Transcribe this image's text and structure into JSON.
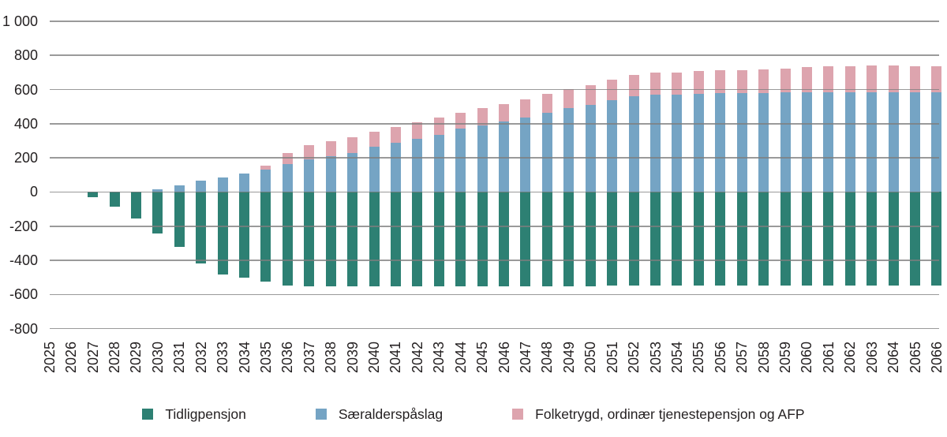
{
  "chart_data": {
    "type": "bar",
    "stacked": true,
    "title": "",
    "xlabel": "",
    "ylabel": "",
    "ylim": [
      -800,
      1000
    ],
    "grid": true,
    "legend_position": "bottom",
    "categories": [
      "2025",
      "2026",
      "2027",
      "2028",
      "2029",
      "2030",
      "2031",
      "2032",
      "2033",
      "2034",
      "2035",
      "2036",
      "2037",
      "2038",
      "2039",
      "2040",
      "2041",
      "2042",
      "2043",
      "2044",
      "2045",
      "2046",
      "2047",
      "2048",
      "2049",
      "2050",
      "2051",
      "2052",
      "2053",
      "2054",
      "2055",
      "2056",
      "2057",
      "2058",
      "2059",
      "2060",
      "2061",
      "2062",
      "2063",
      "2064",
      "2065",
      "2066"
    ],
    "y_ticks": [
      1000,
      800,
      600,
      400,
      200,
      0,
      -200,
      -400,
      -600,
      -800
    ],
    "y_tick_labels": [
      "1 000",
      "800",
      "600",
      "400",
      "200",
      "0",
      "-200",
      "-400",
      "-600",
      "-800"
    ],
    "series": [
      {
        "name": "Tidligpensjon",
        "color": "#2d8073",
        "values": [
          0,
          0,
          -30,
          -85,
          -155,
          -245,
          -320,
          -420,
          -485,
          -500,
          -525,
          -550,
          -555,
          -555,
          -555,
          -555,
          -555,
          -555,
          -555,
          -555,
          -555,
          -555,
          -555,
          -555,
          -555,
          -555,
          -550,
          -550,
          -550,
          -550,
          -550,
          -550,
          -550,
          -550,
          -550,
          -550,
          -550,
          -550,
          -550,
          -550,
          -550,
          -550
        ]
      },
      {
        "name": "Særalderspåslag",
        "color": "#75a4c4",
        "values": [
          0,
          0,
          0,
          0,
          0,
          15,
          40,
          65,
          85,
          110,
          130,
          165,
          190,
          210,
          230,
          265,
          290,
          310,
          335,
          370,
          390,
          415,
          435,
          465,
          490,
          510,
          540,
          560,
          570,
          570,
          575,
          580,
          580,
          580,
          585,
          585,
          585,
          585,
          585,
          585,
          585,
          585
        ]
      },
      {
        "name": "Folketrygd, ordinær tjenestepensjon og AFP",
        "color": "#dda4ae",
        "values": [
          0,
          0,
          0,
          0,
          0,
          0,
          0,
          0,
          0,
          0,
          25,
          65,
          85,
          90,
          90,
          90,
          90,
          100,
          100,
          95,
          100,
          100,
          110,
          110,
          115,
          115,
          120,
          125,
          130,
          130,
          135,
          135,
          135,
          140,
          140,
          148,
          150,
          153,
          155,
          155,
          152,
          152
        ]
      }
    ]
  },
  "colors": {
    "gridline": "#7d7d7d",
    "text": "#231f20",
    "background": "#ffffff"
  }
}
